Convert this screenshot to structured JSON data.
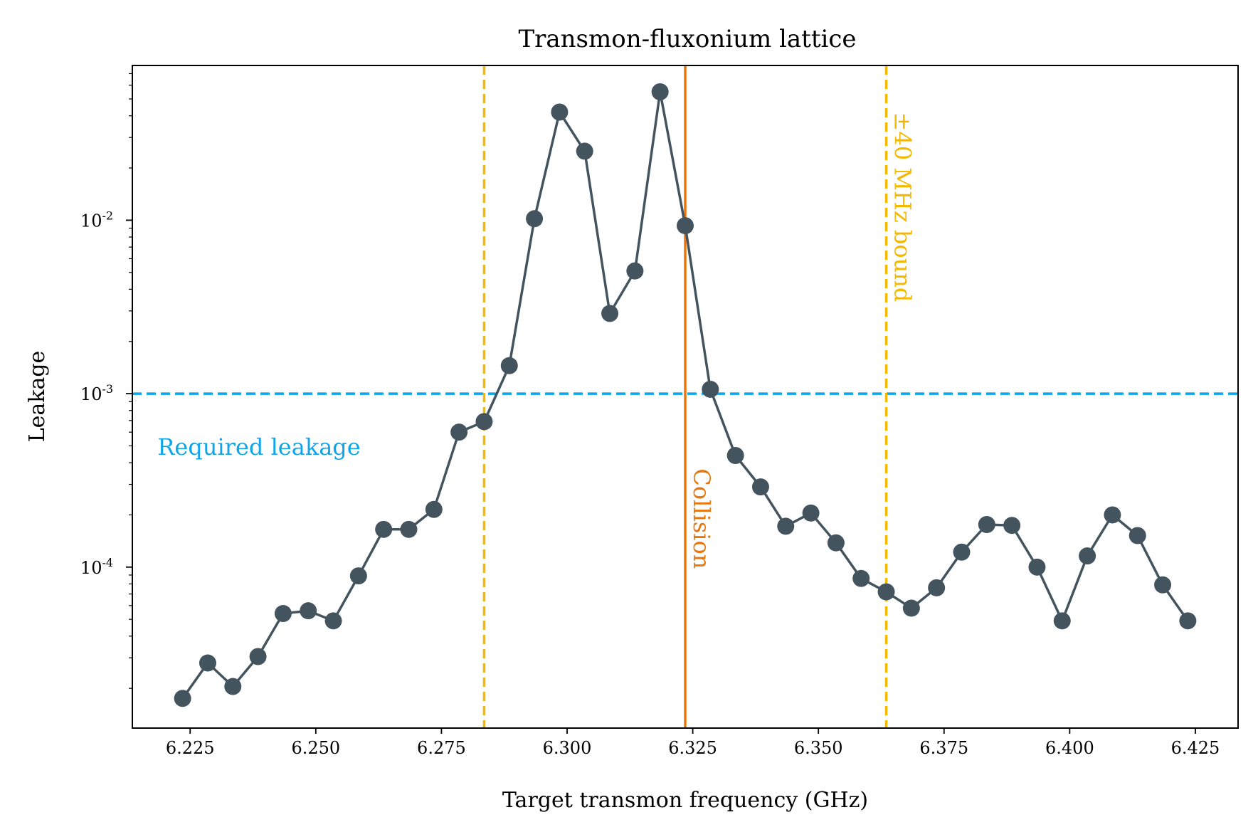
{
  "chart_data": {
    "type": "line",
    "title": "Transmon-fluxonium lattice",
    "xlabel": "Target transmon frequency (GHz)",
    "ylabel": "Leakage",
    "xlim": [
      6.2135,
      6.4335
    ],
    "ylim": [
      1.18e-05,
      0.078
    ],
    "yscale": "log",
    "grid": false,
    "x_ticks": [
      {
        "value": 6.225,
        "label": "6.225"
      },
      {
        "value": 6.25,
        "label": "6.250"
      },
      {
        "value": 6.275,
        "label": "6.275"
      },
      {
        "value": 6.3,
        "label": "6.300"
      },
      {
        "value": 6.325,
        "label": "6.325"
      },
      {
        "value": 6.35,
        "label": "6.350"
      },
      {
        "value": 6.375,
        "label": "6.375"
      },
      {
        "value": 6.4,
        "label": "6.400"
      },
      {
        "value": 6.425,
        "label": "6.425"
      }
    ],
    "y_ticks": [
      {
        "value": 0.0001,
        "base": "10",
        "exp": "-4"
      },
      {
        "value": 0.001,
        "base": "10",
        "exp": "-3"
      },
      {
        "value": 0.01,
        "base": "10",
        "exp": "-2"
      }
    ],
    "series": [
      {
        "color": "#44545f",
        "x": [
          6.2235,
          6.2285,
          6.2335,
          6.2385,
          6.2435,
          6.2485,
          6.2535,
          6.2585,
          6.2635,
          6.2685,
          6.2735,
          6.2785,
          6.2835,
          6.2885,
          6.2935,
          6.2985,
          6.3035,
          6.3085,
          6.3135,
          6.3185,
          6.3235,
          6.3285,
          6.3335,
          6.3385,
          6.3435,
          6.3485,
          6.3535,
          6.3585,
          6.3635,
          6.3685,
          6.3735,
          6.3785,
          6.3835,
          6.3885,
          6.3935,
          6.3985,
          6.4035,
          6.4085,
          6.4135,
          6.4185,
          6.4235
        ],
        "y": [
          1.75e-05,
          2.8e-05,
          2.05e-05,
          3.05e-05,
          5.4e-05,
          5.6e-05,
          4.9e-05,
          8.9e-05,
          0.000165,
          0.000165,
          0.000215,
          0.0006,
          0.00069,
          0.00145,
          0.0102,
          0.042,
          0.025,
          0.0029,
          0.0051,
          0.055,
          0.0093,
          0.00106,
          0.00044,
          0.00029,
          0.000172,
          0.000205,
          0.000138,
          8.6e-05,
          7.2e-05,
          5.8e-05,
          7.6e-05,
          0.000122,
          0.000176,
          0.000174,
          0.0001,
          4.9e-05,
          0.000116,
          0.0002,
          0.000152,
          7.9e-05,
          4.9e-05
        ]
      }
    ],
    "reference_lines": [
      {
        "orientation": "horizontal",
        "value": 0.001,
        "style": "dashed",
        "color": "#0ea5e9",
        "label": "Required leakage"
      },
      {
        "orientation": "vertical",
        "value": 6.3235,
        "style": "solid",
        "color": "#e8760c",
        "label": "Collision"
      },
      {
        "orientation": "vertical",
        "value": 6.2835,
        "style": "dashed",
        "color": "#f5b800",
        "label": ""
      },
      {
        "orientation": "vertical",
        "value": 6.3635,
        "style": "dashed",
        "color": "#f5b800",
        "label": "±40 MHz bound"
      }
    ]
  }
}
